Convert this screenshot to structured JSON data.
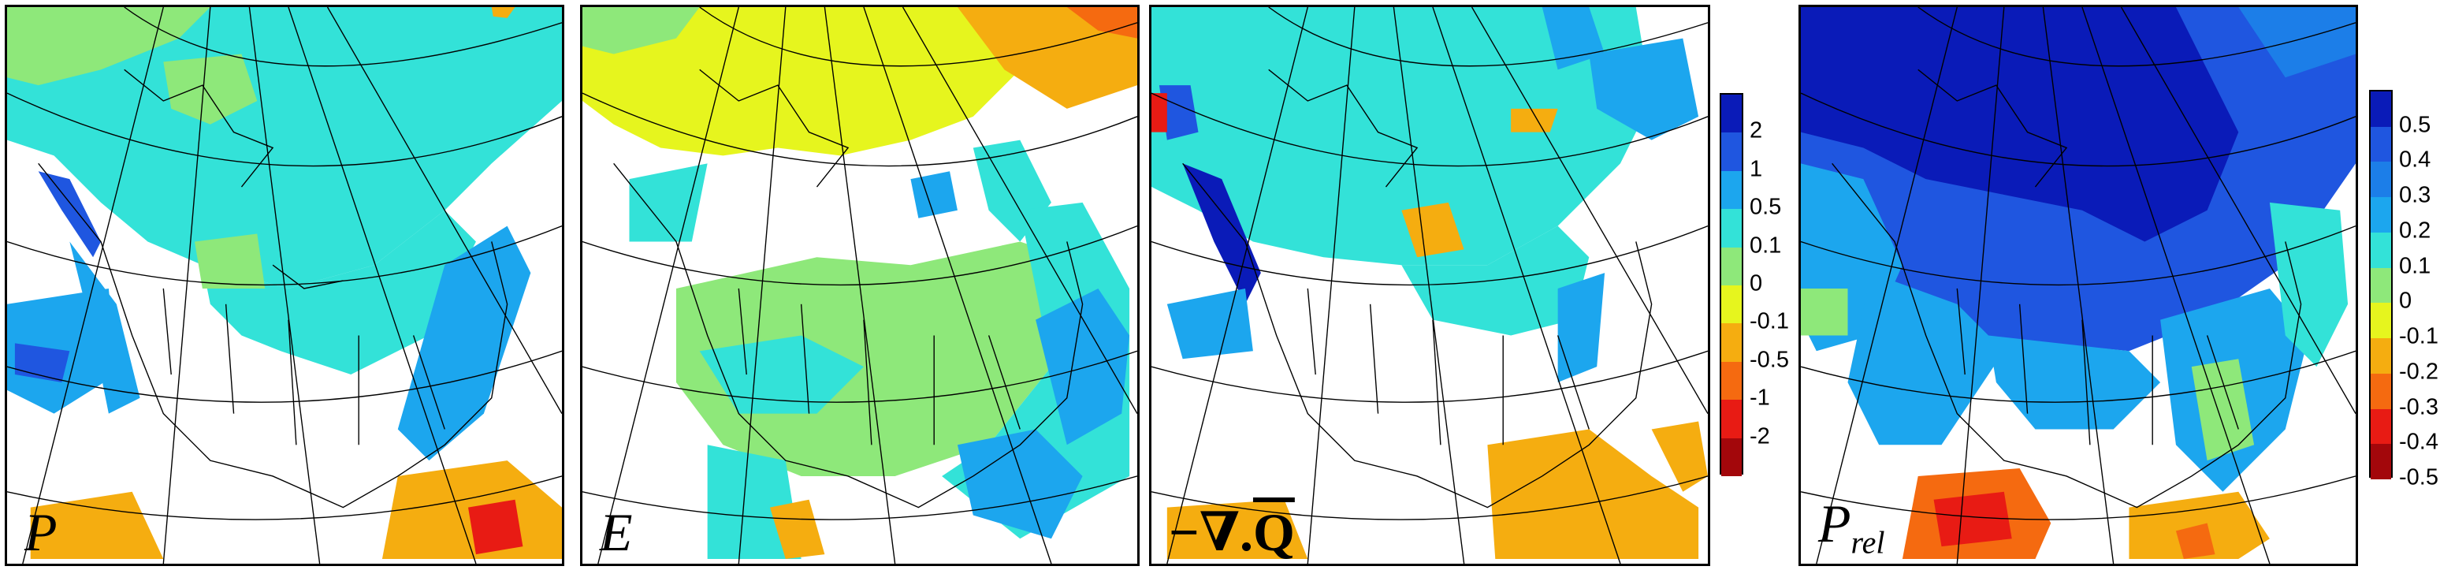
{
  "colors": {
    "darkblue": "#0a1bb8",
    "blue": "#1f56e0",
    "lightblue": "#1ca6ee",
    "cyan": "#33e2d8",
    "green": "#8ee87a",
    "yellow": "#e6f51e",
    "orange": "#f5ad10",
    "darkorange": "#f56a10",
    "red": "#e81b14",
    "darkred": "#a3070b"
  },
  "panels": [
    {
      "id": "P",
      "label_main": "P",
      "label_sub": "",
      "label_style": "italic"
    },
    {
      "id": "E",
      "label_main": "E",
      "label_sub": "",
      "label_style": "italic"
    },
    {
      "id": "divQ",
      "label_prefix": "−∇.",
      "label_main": "Q",
      "label_sub": "",
      "label_style": "math"
    },
    {
      "id": "Prel",
      "label_main": "P",
      "label_sub": "rel",
      "label_style": "italic"
    }
  ],
  "colorbars": [
    {
      "id": "abs",
      "segments": [
        "#0a1bb8",
        "#1f56e0",
        "#1ca6ee",
        "#33e2d8",
        "#8ee87a",
        "#e6f51e",
        "#f5ad10",
        "#f56a10",
        "#e81b14",
        "#a3070b"
      ],
      "ticks": [
        "2",
        "1",
        "0.5",
        "0.1",
        "0",
        "-0.1",
        "-0.5",
        "-1",
        "-2"
      ]
    },
    {
      "id": "rel",
      "segments": [
        "#0a1bb8",
        "#1f56e0",
        "#1c7ee8",
        "#1ca6ee",
        "#33e2d8",
        "#8ee87a",
        "#e6f51e",
        "#f5ad10",
        "#f56a10",
        "#e81b14",
        "#a3070b"
      ],
      "ticks": [
        "0.5",
        "0.4",
        "0.3",
        "0.2",
        "0.1",
        "0",
        "-0.1",
        "-0.2",
        "-0.3",
        "-0.4",
        "-0.5"
      ]
    }
  ]
}
